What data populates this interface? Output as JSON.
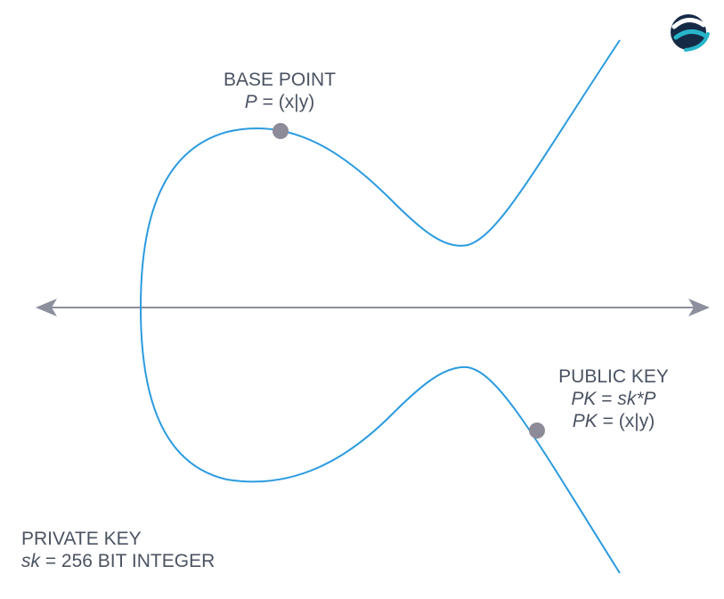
{
  "colors": {
    "curve": "#2b9be0",
    "axis": "#8c8f9c",
    "point": "#8e8b99",
    "text": "#4b5362",
    "logo_dark": "#152a45",
    "logo_accent": "#27b4c9"
  },
  "logo": {
    "icon": "brand-logo-icon"
  },
  "base_point": {
    "title": "BASE POINT",
    "formula_var": "P",
    "formula_rest": " = (x|y)"
  },
  "public_key": {
    "title": "PUBLIC KEY",
    "line1_var": "PK",
    "line1_mid": " = ",
    "line1_expr": "sk*P",
    "line2_var": "PK",
    "line2_rest": " = (x|y)"
  },
  "private_key": {
    "title": "PRIVATE KEY",
    "formula_var": "sk",
    "formula_rest": " = 256 BIT INTEGER"
  }
}
